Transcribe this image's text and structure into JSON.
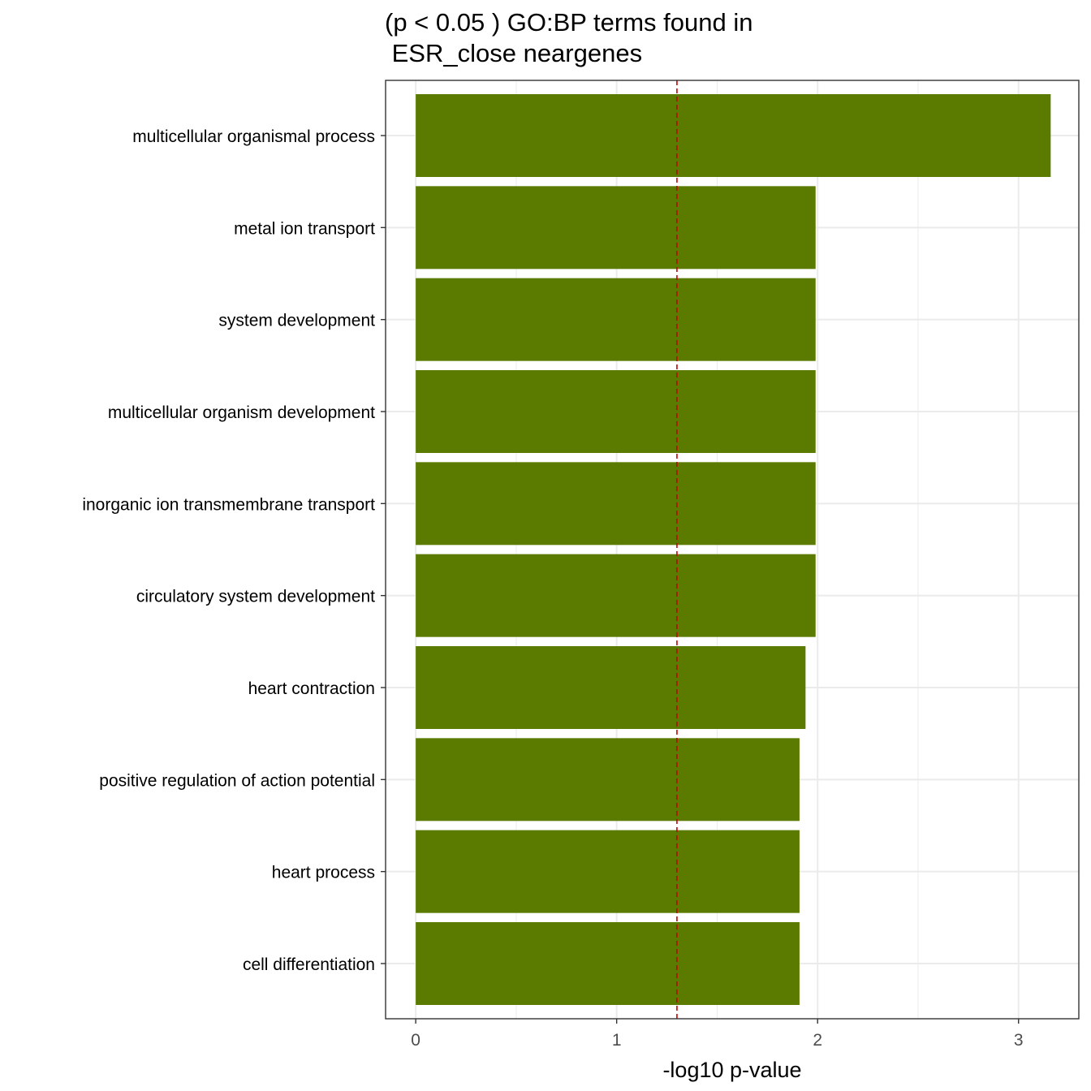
{
  "chart_data": {
    "type": "bar",
    "orientation": "horizontal",
    "title_line1": "(p < 0.05 ) GO:BP terms found in",
    "title_line2": " ESR_close neargenes",
    "xlabel": "-log10 p-value",
    "ylabel": "",
    "xlim": [
      -0.15,
      3.3
    ],
    "xticks": [
      0,
      1,
      2,
      3
    ],
    "xtick_labels": [
      "0",
      "1",
      "2",
      "3"
    ],
    "categories": [
      "multicellular organismal process",
      "metal ion transport",
      "system development",
      "multicellular organism development",
      "inorganic ion transmembrane transport",
      "circulatory system development",
      "heart contraction",
      "positive regulation of action potential",
      "heart process",
      "cell differentiation"
    ],
    "values": [
      3.16,
      1.99,
      1.99,
      1.99,
      1.99,
      1.99,
      1.94,
      1.91,
      1.91,
      1.91
    ],
    "threshold": 1.3,
    "grid": true,
    "legend": "none",
    "colors": {
      "bar": "#5b7b00",
      "threshold_line": "#cc0000",
      "grid": "#ebebeb",
      "axis_text": "#4d4d4d",
      "label_text": "#000000"
    }
  }
}
